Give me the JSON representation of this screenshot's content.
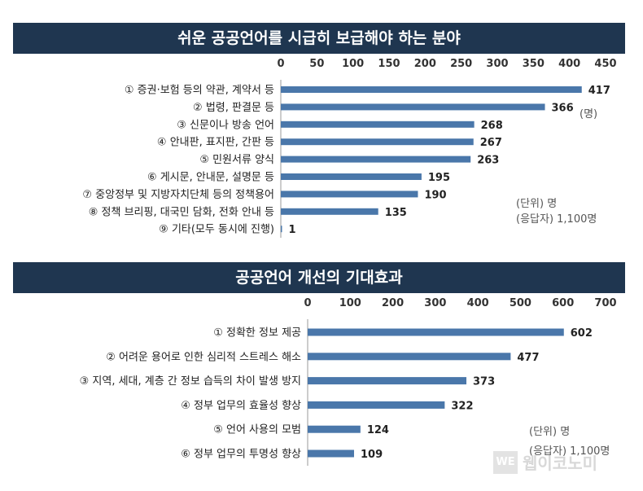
{
  "chart_data": [
    {
      "type": "bar",
      "orientation": "horizontal",
      "title": "쉬운 공공언어를 시급히 보급해야 하는 분야",
      "categories": [
        "① 증권·보험 등의 약관, 계약서 등",
        "② 법령, 판결문 등",
        "③ 신문이나 방송 언어",
        "④ 안내판, 표지판, 간판 등",
        "⑤ 민원서류 양식",
        "⑥ 게시문, 안내문, 설명문 등",
        "⑦ 중앙정부 및 지방자치단체 등의 정책용어",
        "⑧ 정책 브리핑, 대국민 담화, 전화 안내 등",
        "⑨ 기타(모두 동시에 진행)"
      ],
      "values": [
        417,
        366,
        268,
        267,
        263,
        195,
        190,
        135,
        1
      ],
      "xlim": [
        0,
        450
      ],
      "ticks": [
        "0",
        "50",
        "100",
        "150",
        "200",
        "250",
        "300",
        "350",
        "400",
        "450"
      ],
      "unit_note": "(명)",
      "notes": [
        "(단위) 명",
        "(응답자) 1,100명"
      ],
      "bar_color": "#4a77aa",
      "grid": false,
      "axis_position": "top"
    },
    {
      "type": "bar",
      "orientation": "horizontal",
      "title": "공공언어 개선의 기대효과",
      "categories": [
        "① 정확한 정보 제공",
        "② 어려운 용어로 인한 심리적 스트레스 해소",
        "③ 지역, 세대, 계층 간 정보 습득의 차이 발생 방지",
        "④ 정부 업무의 효율성 향상",
        "⑤ 언어 사용의 모범",
        "⑥ 정부 업무의 투명성 향상"
      ],
      "values": [
        602,
        477,
        373,
        322,
        124,
        109
      ],
      "xlim": [
        0,
        700
      ],
      "ticks": [
        "0",
        "100",
        "200",
        "300",
        "400",
        "500",
        "600",
        "700"
      ],
      "notes": [
        "(단위) 명",
        "(응답자) 1,100명"
      ],
      "bar_color": "#4a77aa",
      "grid": false,
      "axis_position": "top"
    }
  ],
  "watermark": {
    "logo": "WE",
    "text": "웹이코노미"
  }
}
